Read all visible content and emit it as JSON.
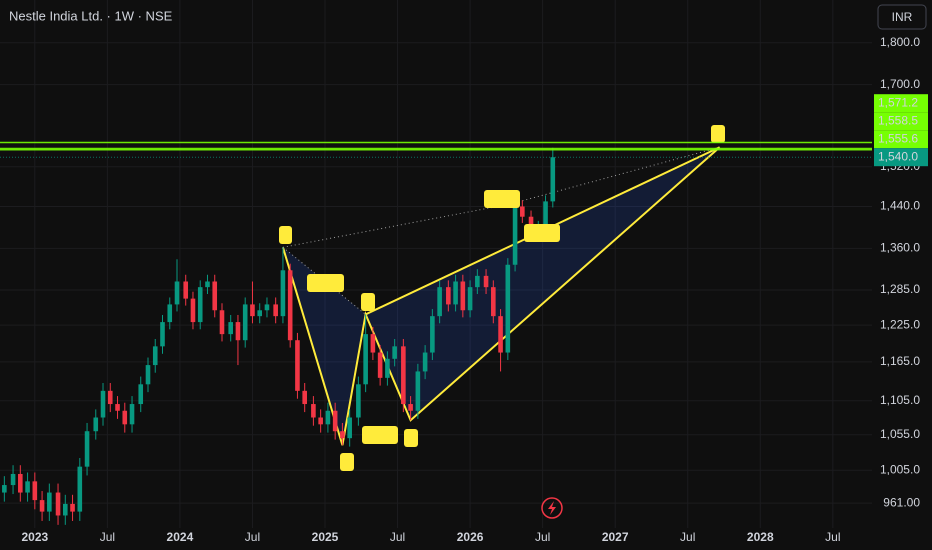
{
  "chart_data": {
    "type": "candlestick",
    "title": "Nestle India Ltd. · 1W · NSE",
    "currency": "INR",
    "up_color": "#089981",
    "down_color": "#f23645",
    "grid": true,
    "log_scale": true,
    "x": [
      2022.79,
      2022.85,
      2022.9,
      2022.95,
      2023.0,
      2023.05,
      2023.1,
      2023.16,
      2023.21,
      2023.26,
      2023.31,
      2023.36,
      2023.42,
      2023.47,
      2023.52,
      2023.57,
      2023.62,
      2023.67,
      2023.73,
      2023.78,
      2023.83,
      2023.88,
      2023.93,
      2023.98,
      2024.04,
      2024.09,
      2024.14,
      2024.19,
      2024.24,
      2024.29,
      2024.35,
      2024.4,
      2024.45,
      2024.5,
      2024.55,
      2024.6,
      2024.66,
      2024.71,
      2024.76,
      2024.81,
      2024.86,
      2024.92,
      2024.97,
      2025.02,
      2025.07,
      2025.12,
      2025.17,
      2025.23,
      2025.28,
      2025.33,
      2025.38,
      2025.43,
      2025.48,
      2025.54,
      2025.59,
      2025.64,
      2025.69,
      2025.74,
      2025.79,
      2025.85,
      2025.9,
      2025.95,
      2026.0,
      2026.05,
      2026.11,
      2026.16,
      2026.21,
      2026.26,
      2026.31,
      2026.36,
      2026.42,
      2026.47,
      2026.52,
      2026.57
    ],
    "open": [
      975,
      985,
      1000,
      975,
      990,
      965,
      950,
      975,
      945,
      960,
      950,
      1010,
      1060,
      1080,
      1120,
      1100,
      1090,
      1070,
      1100,
      1130,
      1160,
      1190,
      1230,
      1260,
      1300,
      1270,
      1230,
      1290,
      1300,
      1250,
      1210,
      1230,
      1200,
      1260,
      1240,
      1250,
      1260,
      1240,
      1320,
      1200,
      1120,
      1100,
      1080,
      1070,
      1090,
      1060,
      1050,
      1080,
      1130,
      1210,
      1180,
      1140,
      1170,
      1190,
      1100,
      1090,
      1150,
      1180,
      1240,
      1290,
      1260,
      1300,
      1250,
      1290,
      1310,
      1290,
      1240,
      1180,
      1330,
      1440,
      1420,
      1390,
      1400,
      1450
    ],
    "high": [
      997,
      1012,
      1012,
      1002,
      1002,
      977,
      987,
      987,
      972,
      972,
      1022,
      1072,
      1092,
      1132,
      1132,
      1112,
      1102,
      1112,
      1142,
      1172,
      1202,
      1242,
      1272,
      1340,
      1312,
      1282,
      1302,
      1312,
      1312,
      1262,
      1242,
      1242,
      1272,
      1300,
      1262,
      1272,
      1272,
      1362,
      1332,
      1212,
      1132,
      1112,
      1092,
      1102,
      1102,
      1072,
      1092,
      1142,
      1243,
      1222,
      1192,
      1182,
      1202,
      1202,
      1112,
      1162,
      1192,
      1252,
      1302,
      1302,
      1312,
      1312,
      1302,
      1322,
      1322,
      1302,
      1252,
      1342,
      1460,
      1452,
      1432,
      1412,
      1462,
      1560
    ],
    "low": [
      963,
      973,
      963,
      963,
      953,
      938,
      938,
      933,
      933,
      938,
      938,
      998,
      1048,
      1068,
      1088,
      1078,
      1058,
      1058,
      1088,
      1118,
      1148,
      1178,
      1218,
      1248,
      1258,
      1218,
      1218,
      1278,
      1238,
      1198,
      1198,
      1160,
      1188,
      1228,
      1228,
      1238,
      1228,
      1228,
      1188,
      1108,
      1088,
      1068,
      1058,
      1058,
      1048,
      1040,
      1038,
      1068,
      1118,
      1168,
      1128,
      1128,
      1158,
      1088,
      1076,
      1078,
      1138,
      1168,
      1228,
      1248,
      1248,
      1238,
      1238,
      1278,
      1278,
      1228,
      1150,
      1168,
      1318,
      1408,
      1378,
      1378,
      1388,
      1438
    ],
    "close": [
      985,
      1000,
      975,
      990,
      965,
      950,
      975,
      945,
      960,
      950,
      1010,
      1060,
      1080,
      1120,
      1100,
      1090,
      1070,
      1100,
      1130,
      1160,
      1190,
      1230,
      1260,
      1300,
      1270,
      1230,
      1290,
      1300,
      1250,
      1210,
      1230,
      1200,
      1260,
      1240,
      1250,
      1260,
      1240,
      1320,
      1200,
      1120,
      1100,
      1080,
      1070,
      1090,
      1060,
      1050,
      1080,
      1130,
      1210,
      1180,
      1140,
      1170,
      1190,
      1100,
      1090,
      1150,
      1180,
      1240,
      1290,
      1260,
      1300,
      1250,
      1290,
      1310,
      1290,
      1240,
      1180,
      1330,
      1440,
      1420,
      1390,
      1400,
      1450,
      1540
    ],
    "xlim": [
      2022.76,
      2028.77
    ],
    "xticks": [
      {
        "value": 2023,
        "label": "2023"
      },
      {
        "value": 2023.5,
        "label": "Jul"
      },
      {
        "value": 2024,
        "label": "2024"
      },
      {
        "value": 2024.5,
        "label": "Jul"
      },
      {
        "value": 2025,
        "label": "2025"
      },
      {
        "value": 2025.5,
        "label": "Jul"
      },
      {
        "value": 2026,
        "label": "2026"
      },
      {
        "value": 2026.5,
        "label": "Jul"
      },
      {
        "value": 2027,
        "label": "2027"
      },
      {
        "value": 2027.5,
        "label": "Jul"
      },
      {
        "value": 2028,
        "label": "2028"
      },
      {
        "value": 2028.5,
        "label": "Jul"
      }
    ],
    "ylim": [
      929,
      1908
    ],
    "yticks": [
      {
        "value": 1800,
        "label": "1,800.0"
      },
      {
        "value": 1700,
        "label": "1,700.0"
      },
      {
        "value": 1520,
        "label": "1,520.0"
      },
      {
        "value": 1440,
        "label": "1,440.0"
      },
      {
        "value": 1360,
        "label": "1,360.0"
      },
      {
        "value": 1285,
        "label": "1,285.0"
      },
      {
        "value": 1225,
        "label": "1,225.0"
      },
      {
        "value": 1165,
        "label": "1,165.0"
      },
      {
        "value": 1105,
        "label": "1,105.0"
      },
      {
        "value": 1055,
        "label": "1,055.0"
      },
      {
        "value": 1005,
        "label": "1,005.0"
      },
      {
        "value": 961,
        "label": "961.00"
      }
    ],
    "price_lines": [
      {
        "value": 1571.2,
        "label": "1,571.2",
        "color": "#76ff03"
      },
      {
        "value": 1558.5,
        "label": "1,558.5",
        "color": "#76ff03"
      },
      {
        "value": 1555.6,
        "label": "1,555.6",
        "color": "#76ff03"
      },
      {
        "value": 1540.0,
        "label": "1,540.0",
        "color": "#089981"
      }
    ],
    "pattern": {
      "color": "#ffeb3b",
      "x": [
        2024.71,
        2025.12,
        2025.28,
        2025.59,
        2027.72
      ],
      "y": [
        1362,
        1040,
        1243,
        1076,
        1561
      ]
    },
    "pattern_dotted": {
      "x": [
        2024.71,
        2026.28,
        2027.72
      ],
      "y": [
        1362,
        1445,
        1561
      ]
    }
  }
}
